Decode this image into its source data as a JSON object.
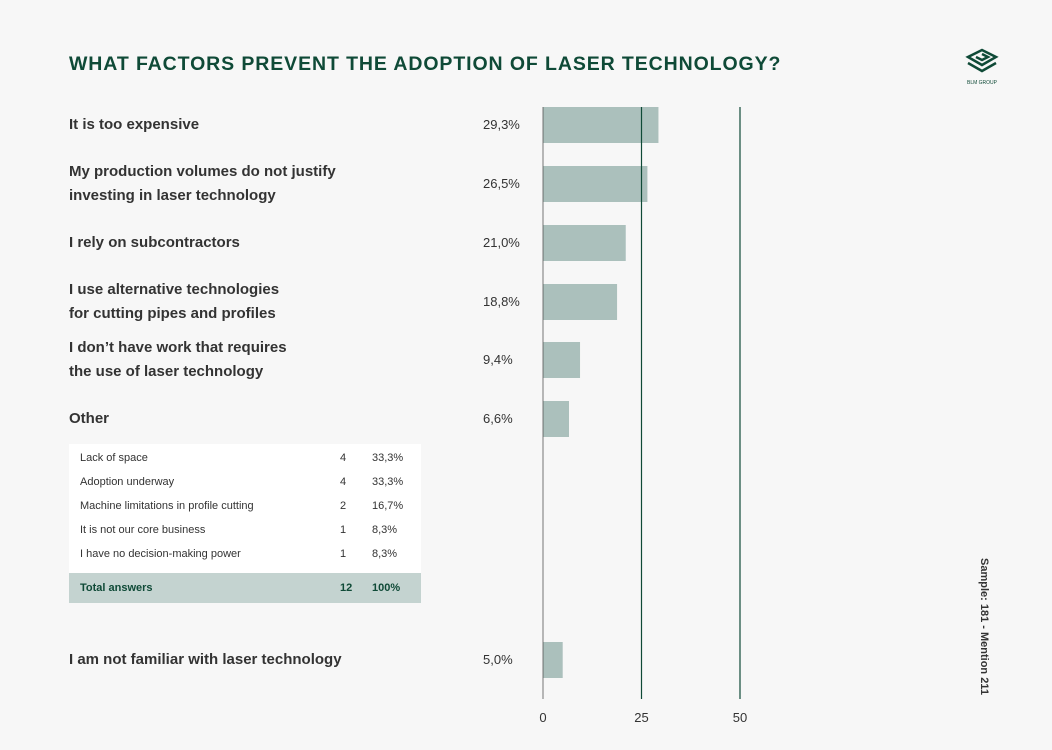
{
  "header": {
    "title": "WHAT FACTORS PREVENT THE ADOPTION OF LASER TECHNOLOGY?",
    "logo_text": "BLM GROUP"
  },
  "chart_data": {
    "type": "bar",
    "orientation": "horizontal",
    "title": "WHAT FACTORS PREVENT THE ADOPTION OF LASER TECHNOLOGY?",
    "categories": [
      [
        "It is too expensive"
      ],
      [
        "My production volumes do not justify",
        "investing in laser technology"
      ],
      [
        "I rely on subcontractors"
      ],
      [
        "I use alternative technologies",
        "for cutting pipes and profiles"
      ],
      [
        "I don’t have work that requires",
        "the use of laser technology"
      ],
      [
        "Other"
      ],
      [
        "I am not familiar with laser technology"
      ]
    ],
    "values": [
      29.3,
      26.5,
      21.0,
      18.8,
      9.4,
      6.6,
      5.0
    ],
    "value_labels": [
      "29,3%",
      "26,5%",
      "21,0%",
      "18,8%",
      "9,4%",
      "6,6%",
      "5,0%"
    ],
    "xlim": [
      0,
      60
    ],
    "xticks": [
      0,
      25,
      50
    ],
    "xtick_labels": [
      "0",
      "25",
      "50"
    ],
    "bar_color": "#abc0bc",
    "gridline_color": "#0f4a37"
  },
  "other_table": {
    "rows": [
      [
        "Lack of space",
        "4",
        "33,3%"
      ],
      [
        "Adoption underway",
        "4",
        "33,3%"
      ],
      [
        "Machine limitations in profile cutting",
        "2",
        "16,7%"
      ],
      [
        "It is not our core business",
        "1",
        "8,3%"
      ],
      [
        "I have no decision-making power",
        "1",
        "8,3%"
      ]
    ],
    "total": [
      "Total answers",
      "12",
      "100%"
    ]
  },
  "footnote": "Sample: 181 - Mention 211"
}
